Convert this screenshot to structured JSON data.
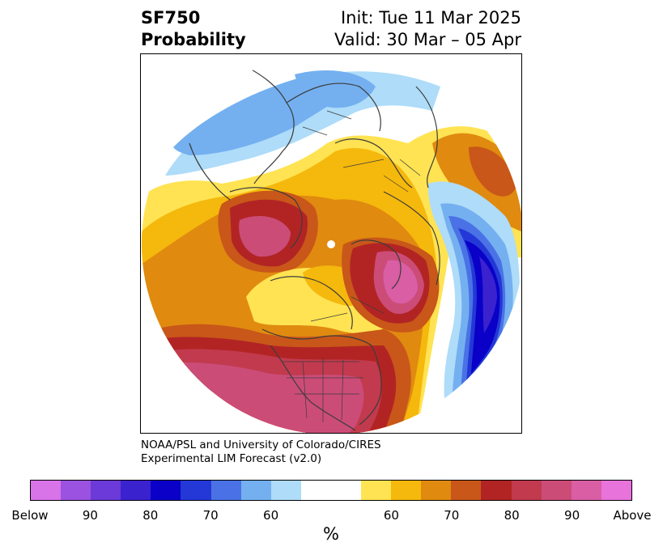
{
  "header": {
    "title_line1": "SF750",
    "title_line2": "Probability",
    "init_text": "Init: Tue 11 Mar 2025",
    "valid_text": "Valid: 30 Mar – 05 Apr"
  },
  "credit": {
    "line1": "NOAA/PSL and University of Colorado/CIRES",
    "line2": "Experimental LIM Forecast (v2.0)"
  },
  "colorbar": {
    "unit": "%",
    "ticks": [
      "Below",
      "90",
      "80",
      "70",
      "60",
      "60",
      "70",
      "80",
      "90",
      "Above"
    ],
    "below_colors": [
      "#d873e8",
      "#9b52e0",
      "#6c3ad8",
      "#3b22cf",
      "#0a00c8",
      "#2338d6",
      "#4a72e6",
      "#74b0f0",
      "#aedcf9"
    ],
    "neutral_color": "#ffffff",
    "above_colors": [
      "#ffe352",
      "#f5b80c",
      "#e08a10",
      "#c85719",
      "#b22424",
      "#c23a4e",
      "#cc4c78",
      "#d95ea4",
      "#e773db"
    ]
  },
  "map": {
    "projection": "north-polar-stereographic",
    "variable": "SF750 probability"
  }
}
